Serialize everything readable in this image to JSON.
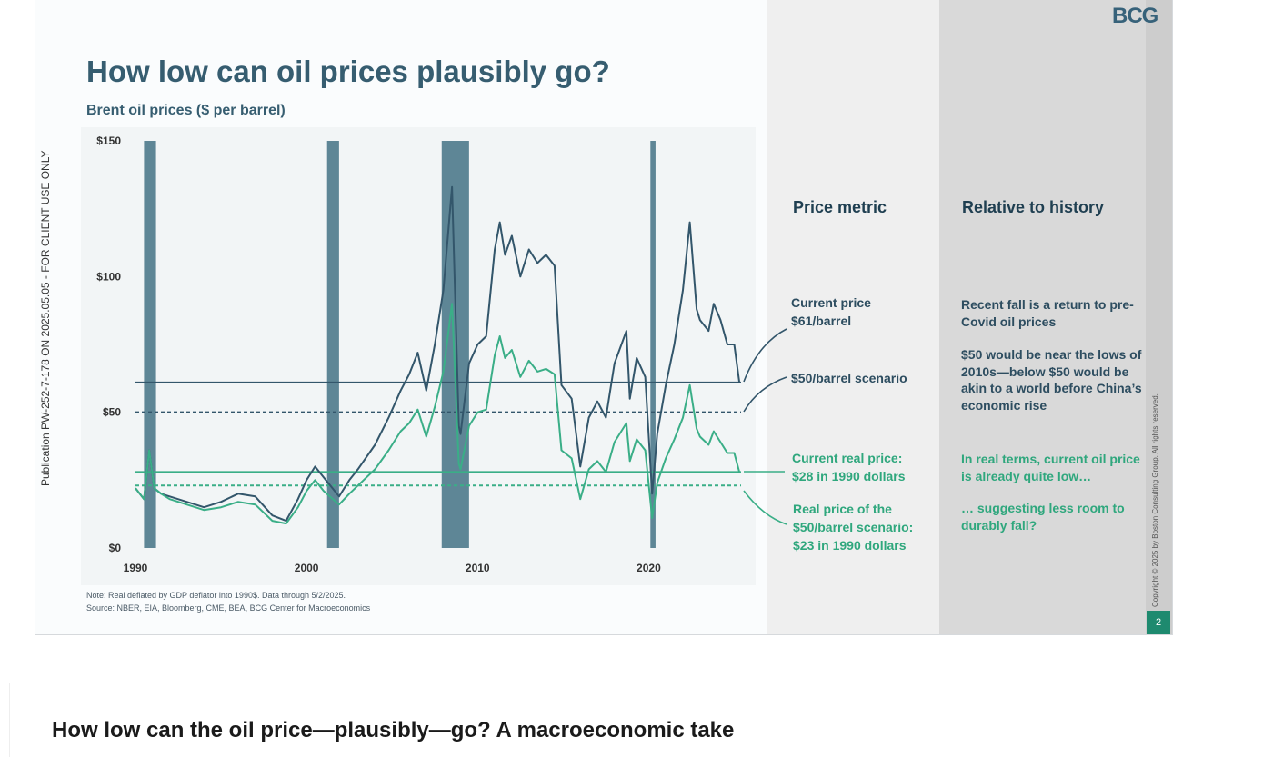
{
  "slide": {
    "logo": "BCG",
    "title": "How low can oil prices plausibly go?",
    "subtitle": "Brent oil prices ($ per barrel)",
    "note": "Note: Real deflated by GDP deflator into 1990$. Data through 5/2/2025.",
    "source": "Source: NBER, EIA, Bloomberg, CME, BEA, BCG Center for Macroeconomics",
    "columns": {
      "metric": "Price metric",
      "history": "Relative to history"
    },
    "annotations": {
      "current_price": "Current price\n$61/barrel",
      "scenario": "$50/barrel scenario",
      "current_real": "Current real price:\n$28 in 1990 dollars",
      "real_scenario": "Real price of the\n$50/barrel scenario:\n$23 in 1990 dollars"
    },
    "history_notes": {
      "h1": "Recent fall is a return to pre-Covid oil prices",
      "h2": "$50 would be near the lows of 2010s—below $50 would be akin to a world before China’s economic rise",
      "h3": "In real terms, current oil price is already quite low…",
      "h4": "… suggesting less room to durably fall?"
    },
    "copyright": "Copyright © 2025 by Boston Consulting Group. All rights reserved.",
    "page_number": "2",
    "side_tag": "Publication PW-252-7-178 ON 2025.05.05 - FOR CLIENT USE ONLY"
  },
  "article_title": "How low can the oil price—plausibly—go? A macroeconomic take",
  "colors": {
    "nominal": "#33566b",
    "real": "#3aae87",
    "recession": "#5e8696",
    "title": "#365d70",
    "page_badge": "#1e8a6f"
  },
  "chart_data": {
    "type": "line",
    "title": "Brent oil prices ($ per barrel)",
    "xlabel": "",
    "ylabel": "",
    "xlim": [
      1990,
      2025.4
    ],
    "ylim": [
      0,
      150
    ],
    "x_ticks": [
      "1990",
      "2000",
      "2010",
      "2020"
    ],
    "y_ticks": [
      "$0",
      "$50",
      "$100",
      "$150"
    ],
    "grid": false,
    "recessions": [
      [
        1990.5,
        1991.2
      ],
      [
        2001.2,
        2001.9
      ],
      [
        2007.9,
        2009.5
      ],
      [
        2020.1,
        2020.4
      ]
    ],
    "reference_lines": [
      {
        "value": 61,
        "style": "solid",
        "color": "#33566b"
      },
      {
        "value": 50,
        "style": "dashed",
        "color": "#33566b"
      },
      {
        "value": 28,
        "style": "solid",
        "color": "#3aae87"
      },
      {
        "value": 23,
        "style": "dashed",
        "color": "#3aae87"
      }
    ],
    "series": [
      {
        "color": "#33566b",
        "points": [
          [
            1990,
            22
          ],
          [
            1990.5,
            18
          ],
          [
            1990.8,
            36
          ],
          [
            1991.1,
            22
          ],
          [
            1991.5,
            20
          ],
          [
            1992,
            19
          ],
          [
            1993,
            17
          ],
          [
            1994,
            15
          ],
          [
            1995,
            17
          ],
          [
            1996,
            20
          ],
          [
            1997,
            19
          ],
          [
            1998,
            12
          ],
          [
            1998.8,
            10
          ],
          [
            1999.5,
            18
          ],
          [
            2000,
            25
          ],
          [
            2000.5,
            30
          ],
          [
            2001,
            26
          ],
          [
            2001.9,
            19
          ],
          [
            2002.5,
            25
          ],
          [
            2003,
            29
          ],
          [
            2004,
            38
          ],
          [
            2004.8,
            48
          ],
          [
            2005.5,
            58
          ],
          [
            2006,
            64
          ],
          [
            2006.5,
            72
          ],
          [
            2007,
            58
          ],
          [
            2007.5,
            75
          ],
          [
            2008,
            95
          ],
          [
            2008.5,
            133
          ],
          [
            2008.9,
            45
          ],
          [
            2009,
            42
          ],
          [
            2009.5,
            68
          ],
          [
            2010,
            75
          ],
          [
            2010.5,
            78
          ],
          [
            2011,
            110
          ],
          [
            2011.3,
            120
          ],
          [
            2011.6,
            108
          ],
          [
            2012,
            115
          ],
          [
            2012.5,
            100
          ],
          [
            2013,
            110
          ],
          [
            2013.5,
            105
          ],
          [
            2014,
            108
          ],
          [
            2014.5,
            104
          ],
          [
            2014.9,
            60
          ],
          [
            2015.5,
            55
          ],
          [
            2016,
            30
          ],
          [
            2016.5,
            48
          ],
          [
            2017,
            54
          ],
          [
            2017.5,
            48
          ],
          [
            2018,
            68
          ],
          [
            2018.7,
            80
          ],
          [
            2018.9,
            55
          ],
          [
            2019.3,
            70
          ],
          [
            2019.8,
            63
          ],
          [
            2020.2,
            20
          ],
          [
            2020.5,
            42
          ],
          [
            2021,
            60
          ],
          [
            2021.5,
            75
          ],
          [
            2022,
            95
          ],
          [
            2022.4,
            120
          ],
          [
            2022.8,
            88
          ],
          [
            2023,
            84
          ],
          [
            2023.5,
            80
          ],
          [
            2023.8,
            90
          ],
          [
            2024.2,
            84
          ],
          [
            2024.6,
            75
          ],
          [
            2025,
            75
          ],
          [
            2025.3,
            61
          ]
        ]
      },
      {
        "color": "#3aae87",
        "points": [
          [
            1990,
            22
          ],
          [
            1990.5,
            18
          ],
          [
            1990.8,
            36
          ],
          [
            1991.1,
            22
          ],
          [
            1991.5,
            20
          ],
          [
            1992,
            18
          ],
          [
            1993,
            16
          ],
          [
            1994,
            14
          ],
          [
            1995,
            15
          ],
          [
            1996,
            17
          ],
          [
            1997,
            16
          ],
          [
            1998,
            10
          ],
          [
            1998.8,
            9
          ],
          [
            1999.5,
            15
          ],
          [
            2000,
            21
          ],
          [
            2000.5,
            25
          ],
          [
            2001,
            21
          ],
          [
            2001.9,
            16
          ],
          [
            2002.5,
            20
          ],
          [
            2003,
            23
          ],
          [
            2004,
            29
          ],
          [
            2004.8,
            36
          ],
          [
            2005.5,
            43
          ],
          [
            2006,
            46
          ],
          [
            2006.5,
            51
          ],
          [
            2007,
            41
          ],
          [
            2007.5,
            52
          ],
          [
            2008,
            65
          ],
          [
            2008.5,
            90
          ],
          [
            2008.9,
            31
          ],
          [
            2009,
            29
          ],
          [
            2009.5,
            45
          ],
          [
            2010,
            50
          ],
          [
            2010.5,
            51
          ],
          [
            2011,
            71
          ],
          [
            2011.3,
            78
          ],
          [
            2011.6,
            70
          ],
          [
            2012,
            73
          ],
          [
            2012.5,
            63
          ],
          [
            2013,
            69
          ],
          [
            2013.5,
            65
          ],
          [
            2014,
            66
          ],
          [
            2014.5,
            64
          ],
          [
            2014.9,
            36
          ],
          [
            2015.5,
            33
          ],
          [
            2016,
            18
          ],
          [
            2016.5,
            29
          ],
          [
            2017,
            32
          ],
          [
            2017.5,
            28
          ],
          [
            2018,
            39
          ],
          [
            2018.7,
            46
          ],
          [
            2018.9,
            32
          ],
          [
            2019.3,
            40
          ],
          [
            2019.8,
            36
          ],
          [
            2020.2,
            11
          ],
          [
            2020.5,
            24
          ],
          [
            2021,
            33
          ],
          [
            2021.5,
            40
          ],
          [
            2022,
            48
          ],
          [
            2022.4,
            60
          ],
          [
            2022.8,
            44
          ],
          [
            2023,
            41
          ],
          [
            2023.5,
            38
          ],
          [
            2023.8,
            43
          ],
          [
            2024.2,
            39
          ],
          [
            2024.6,
            35
          ],
          [
            2025,
            35
          ],
          [
            2025.3,
            28
          ]
        ]
      }
    ]
  }
}
